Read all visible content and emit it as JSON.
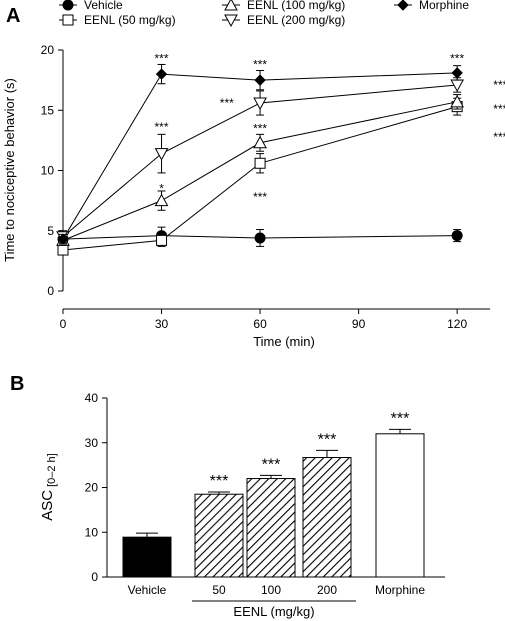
{
  "panels": [
    {
      "letter": "A"
    },
    {
      "letter": "B"
    }
  ],
  "chart_data": [
    {
      "type": "line",
      "xlabel": "Time (min)",
      "ylabel": "Time to nociceptive behavior (s)",
      "xlim": [
        0,
        130
      ],
      "ylim": [
        0,
        20
      ],
      "xticks": [
        "0",
        "30",
        "60",
        "90",
        "120"
      ],
      "yticks": [
        "0",
        "5",
        "10",
        "15",
        "20"
      ],
      "grid": false,
      "legend_position": "top",
      "series": [
        {
          "name": "Vehicle",
          "marker": "filled-circle",
          "points": [
            {
              "x": 0,
              "y": 4.3,
              "err": 0.4
            },
            {
              "x": 30,
              "y": 4.6,
              "err": 0.7
            },
            {
              "x": 60,
              "y": 4.4,
              "err": 0.7
            },
            {
              "x": 120,
              "y": 4.6,
              "err": 0.5
            }
          ],
          "annotations": [
            "",
            "",
            "",
            ""
          ]
        },
        {
          "name": "EENL (50 mg/kg)",
          "marker": "open-square",
          "points": [
            {
              "x": 0,
              "y": 3.4,
              "err": 0.4
            },
            {
              "x": 30,
              "y": 4.2,
              "err": 0.5
            },
            {
              "x": 60,
              "y": 10.6,
              "err": 0.8
            },
            {
              "x": 120,
              "y": 15.3,
              "err": 0.7
            }
          ],
          "annotations": [
            "",
            "",
            "***",
            "***"
          ]
        },
        {
          "name": "EENL (100 mg/kg)",
          "marker": "open-triangle-up",
          "points": [
            {
              "x": 0,
              "y": 4.2,
              "err": 0.4
            },
            {
              "x": 30,
              "y": 7.5,
              "err": 0.8
            },
            {
              "x": 60,
              "y": 12.3,
              "err": 0.7
            },
            {
              "x": 120,
              "y": 15.7,
              "err": 0.6
            }
          ],
          "annotations": [
            "",
            "*",
            "***",
            "***"
          ]
        },
        {
          "name": "EENL (200 mg/kg)",
          "marker": "open-triangle-down",
          "points": [
            {
              "x": 0,
              "y": 4.5,
              "err": 0.5
            },
            {
              "x": 30,
              "y": 11.4,
              "err": 1.6
            },
            {
              "x": 60,
              "y": 15.6,
              "err": 1.0
            },
            {
              "x": 120,
              "y": 17.1,
              "err": 0.6
            }
          ],
          "annotations": [
            "",
            "***",
            "***",
            "***"
          ]
        },
        {
          "name": "Morphine",
          "marker": "filled-diamond",
          "points": [
            {
              "x": 0,
              "y": 4.3,
              "err": 0.4
            },
            {
              "x": 30,
              "y": 18.0,
              "err": 0.8
            },
            {
              "x": 60,
              "y": 17.5,
              "err": 0.8
            },
            {
              "x": 120,
              "y": 18.1,
              "err": 0.6
            }
          ],
          "annotations": [
            "",
            "***",
            "***",
            "***"
          ]
        }
      ]
    },
    {
      "type": "bar",
      "ylabel_main": "ASC",
      "ylabel_sub": "[0–2 h]",
      "ylim": [
        0,
        40
      ],
      "yticks": [
        "0",
        "10",
        "20",
        "30",
        "40"
      ],
      "categories": [
        "Vehicle",
        "50",
        "100",
        "200",
        "Morphine"
      ],
      "values": [
        8.9,
        18.5,
        22.0,
        26.7,
        32.0
      ],
      "errors": [
        0.9,
        0.5,
        0.7,
        1.6,
        1.0
      ],
      "annotations": [
        "",
        "***",
        "***",
        "***",
        "***"
      ],
      "fills": [
        "solid-black",
        "hatched",
        "hatched",
        "hatched",
        "white"
      ],
      "group_label": "EENL (mg/kg)"
    }
  ]
}
